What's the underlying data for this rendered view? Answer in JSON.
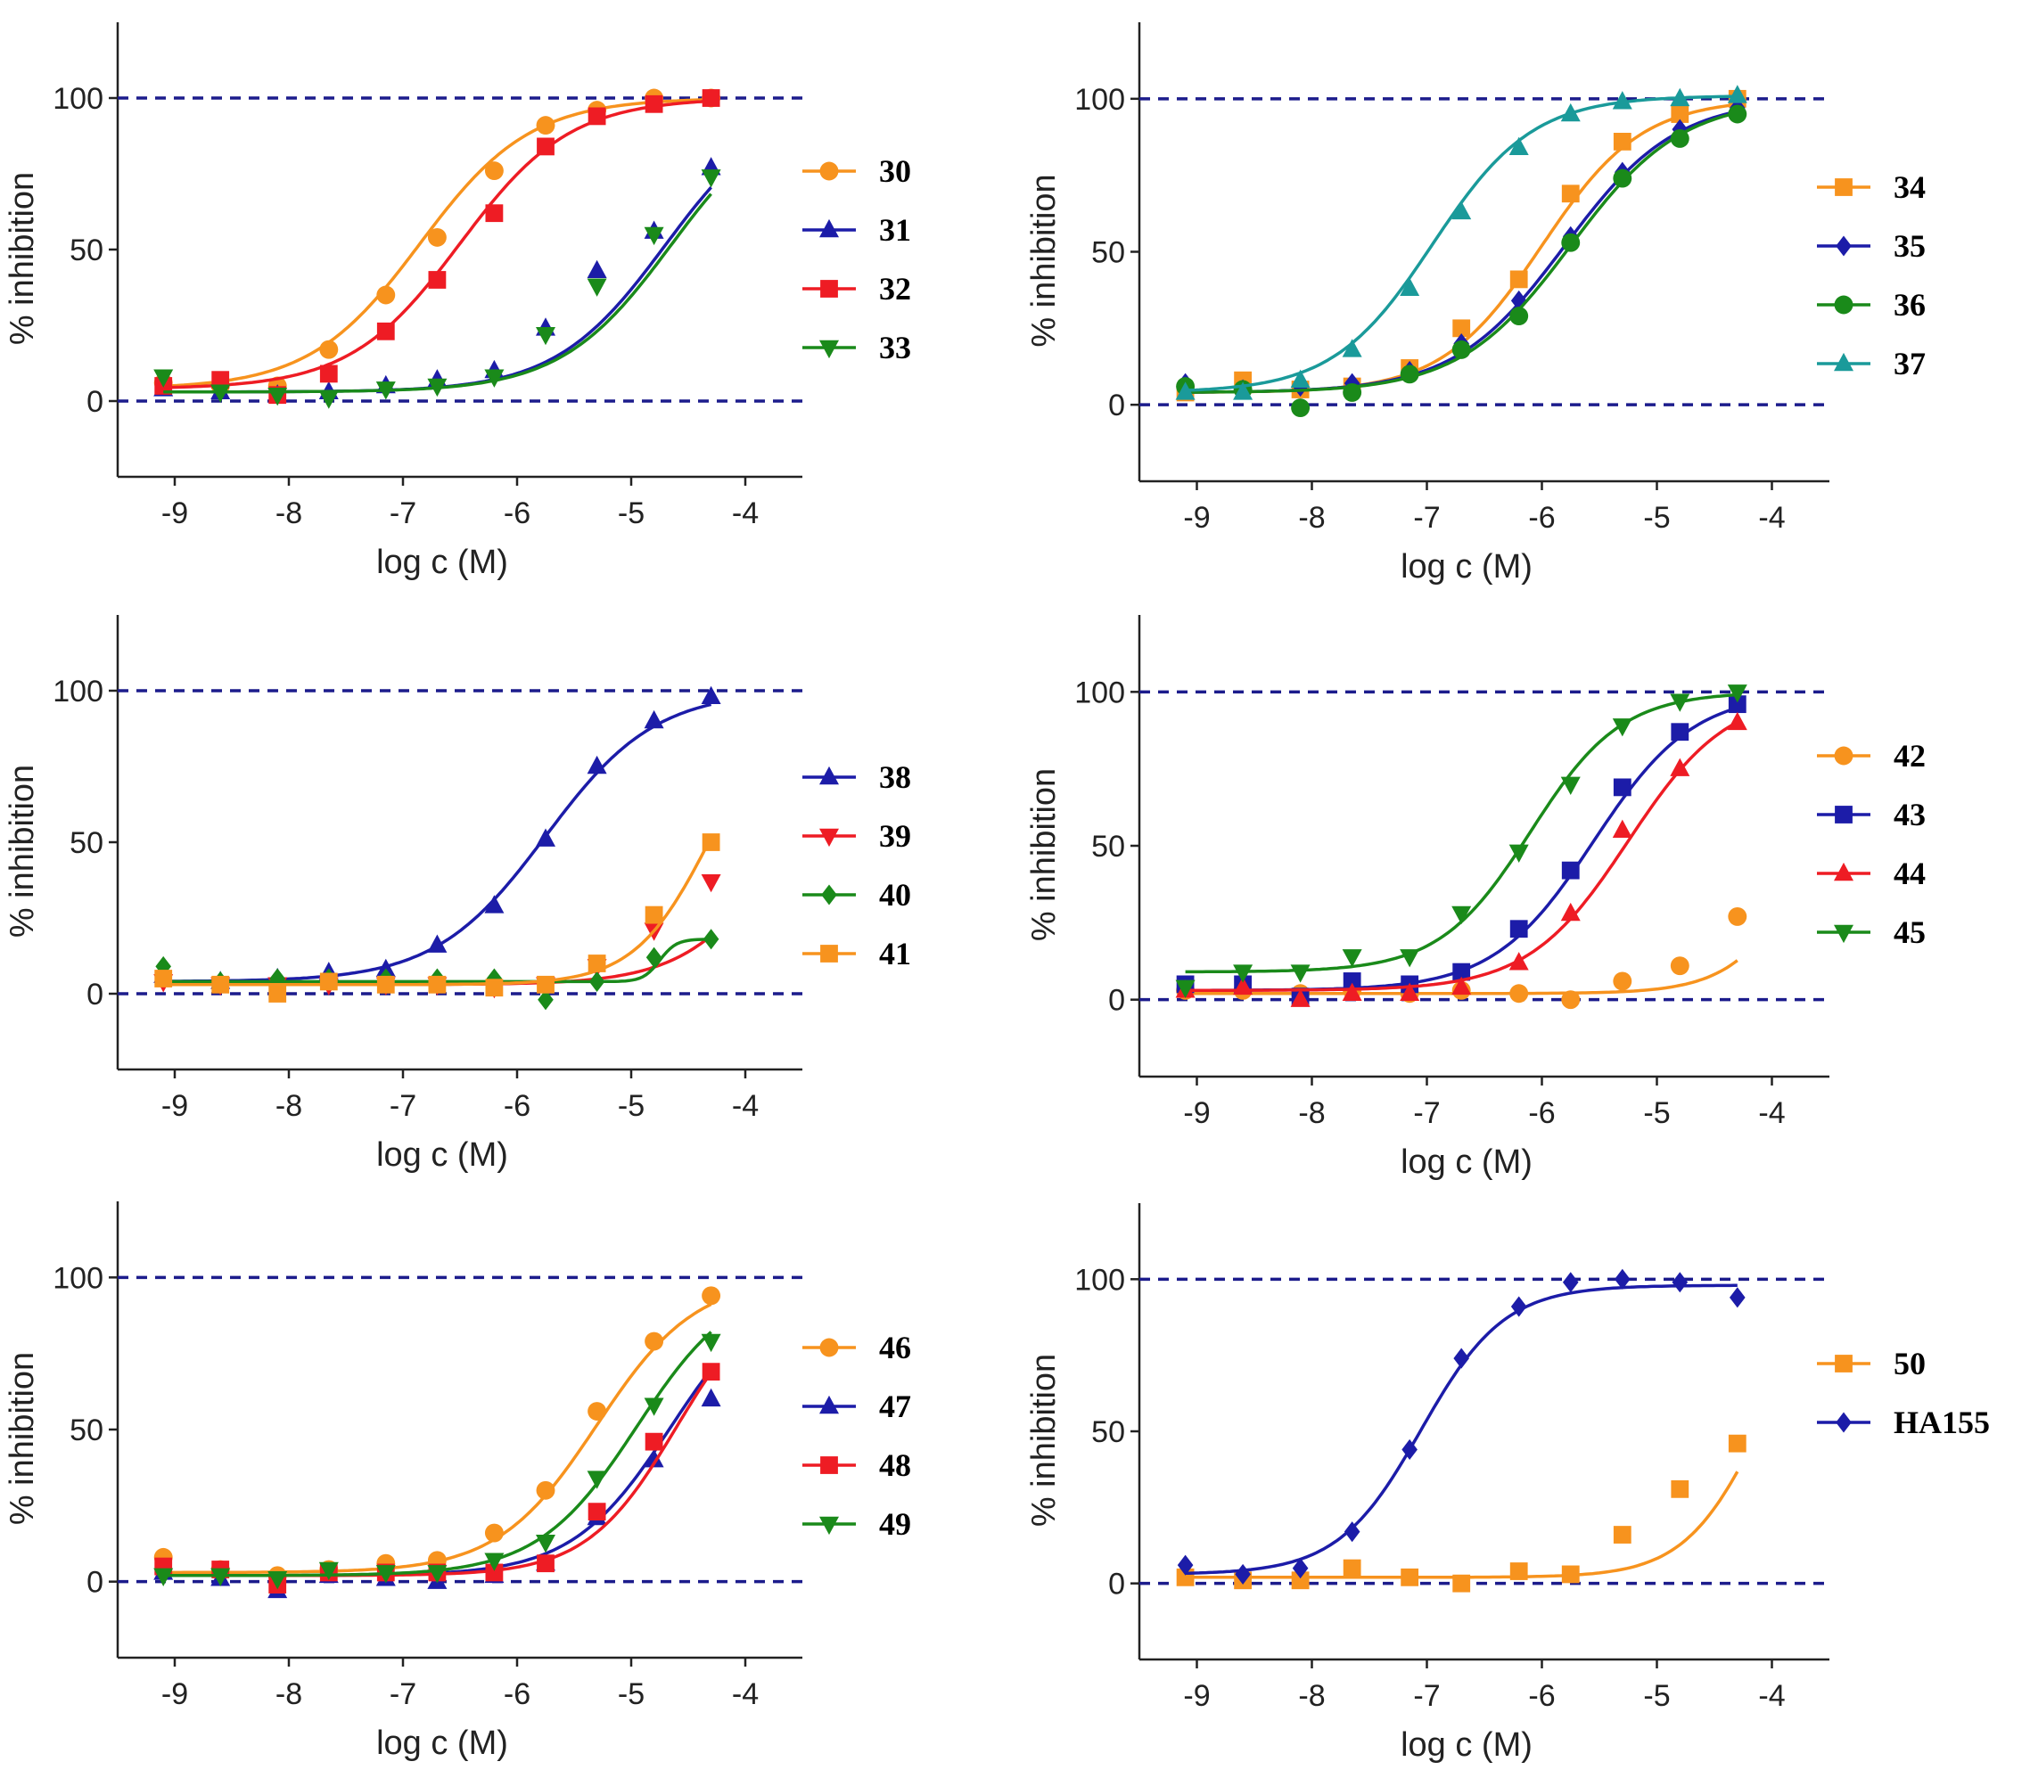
{
  "figure": {
    "description": ""
  },
  "colors": {
    "orange": "#f7931e",
    "blue": "#1c1ca8",
    "red": "#ee1c24",
    "green": "#1a8a1a",
    "teal": "#1a9a9a",
    "refline": "#1c1c8c"
  },
  "chart_data": [
    {
      "type": "line",
      "panel": "top-left",
      "xlabel": "log c (M)",
      "ylabel": "% inhibition",
      "xlim": [
        -9.5,
        -3.5
      ],
      "ylim": [
        -25,
        125
      ],
      "xticks": [
        -9,
        -8,
        -7,
        -6,
        -5,
        -4
      ],
      "xtick_labels": [
        "-9",
        "-8",
        "-7",
        "-6",
        "-5",
        "-4"
      ],
      "yticks": [
        0,
        50,
        100
      ],
      "ytick_labels": [
        "0",
        "50",
        "100"
      ],
      "reference_lines": [
        0,
        100
      ],
      "legend_position": "right",
      "series": [
        {
          "name": "30",
          "color": "orange",
          "marker": "circle",
          "x": [
            -9.1,
            -8.6,
            -8.1,
            -7.65,
            -7.15,
            -6.7,
            -6.2,
            -5.75,
            -5.3,
            -4.8,
            -4.3
          ],
          "y": [
            6,
            5,
            5,
            17,
            35,
            54,
            76,
            91,
            96,
            100,
            100
          ],
          "fit": {
            "bottom": 4,
            "top": 100,
            "logEC50": -6.85,
            "hill": 0.9
          }
        },
        {
          "name": "31",
          "color": "blue",
          "marker": "triangle-up",
          "x": [
            -9.1,
            -8.6,
            -8.1,
            -7.65,
            -7.15,
            -6.7,
            -6.2,
            -5.75,
            -5.3,
            -4.8,
            -4.3
          ],
          "y": [
            4,
            3,
            2,
            3,
            5,
            7,
            10,
            24,
            43,
            56,
            77
          ],
          "fit": {
            "bottom": 3,
            "top": 100,
            "logEC50": -4.7,
            "hill": 0.9
          }
        },
        {
          "name": "32",
          "color": "red",
          "marker": "square",
          "x": [
            -9.1,
            -8.6,
            -8.1,
            -7.65,
            -7.15,
            -6.7,
            -6.2,
            -5.75,
            -5.3,
            -4.8,
            -4.3
          ],
          "y": [
            5,
            7,
            2,
            9,
            23,
            40,
            62,
            84,
            94,
            98,
            100
          ],
          "fit": {
            "bottom": 4,
            "top": 100,
            "logEC50": -6.5,
            "hill": 0.9
          }
        },
        {
          "name": "33",
          "color": "green",
          "marker": "triangle-down",
          "x": [
            -9.1,
            -8.6,
            -8.1,
            -7.65,
            -7.15,
            -6.7,
            -6.2,
            -5.75,
            -5.3,
            -4.8,
            -4.3
          ],
          "y": [
            8,
            3,
            2,
            1,
            4,
            5,
            8,
            22,
            38,
            55,
            74
          ],
          "fit": {
            "bottom": 3,
            "top": 100,
            "logEC50": -4.65,
            "hill": 0.9
          }
        }
      ]
    },
    {
      "type": "line",
      "panel": "top-right",
      "xlabel": "log c (M)",
      "ylabel": "% inhibition",
      "xlim": [
        -9.5,
        -3.5
      ],
      "ylim": [
        -25,
        125
      ],
      "xticks": [
        -9,
        -8,
        -7,
        -6,
        -5,
        -4
      ],
      "xtick_labels": [
        "-9",
        "-8",
        "-7",
        "-6",
        "-5",
        "-4"
      ],
      "yticks": [
        0,
        50,
        100
      ],
      "ytick_labels": [
        "0",
        "50",
        "100"
      ],
      "reference_lines": [
        0,
        100
      ],
      "legend_position": "right",
      "series": [
        {
          "name": "34",
          "color": "orange",
          "marker": "square",
          "x": [
            -9.1,
            -8.6,
            -8.1,
            -7.65,
            -7.15,
            -6.7,
            -6.2,
            -5.75,
            -5.3,
            -4.8,
            -4.3
          ],
          "y": [
            4,
            8,
            5,
            6,
            12,
            25,
            41,
            69,
            86,
            95,
            100
          ],
          "fit": {
            "bottom": 4,
            "top": 100,
            "logEC50": -6.0,
            "hill": 1.0
          }
        },
        {
          "name": "35",
          "color": "blue",
          "marker": "diamond",
          "x": [
            -9.1,
            -8.6,
            -8.1,
            -7.65,
            -7.15,
            -6.7,
            -6.2,
            -5.75,
            -5.3,
            -4.8,
            -4.3
          ],
          "y": [
            7,
            5,
            6,
            7,
            11,
            20,
            34,
            55,
            76,
            90,
            97
          ],
          "fit": {
            "bottom": 4,
            "top": 100,
            "logEC50": -5.8,
            "hill": 0.9
          }
        },
        {
          "name": "36",
          "color": "green",
          "marker": "circle",
          "x": [
            -9.1,
            -8.6,
            -8.1,
            -7.65,
            -7.15,
            -6.7,
            -6.2,
            -5.75,
            -5.3,
            -4.8,
            -4.3
          ],
          "y": [
            6,
            5,
            -1,
            4,
            10,
            18,
            29,
            53,
            74,
            87,
            95
          ],
          "fit": {
            "bottom": 4,
            "top": 100,
            "logEC50": -5.75,
            "hill": 0.9
          }
        },
        {
          "name": "37",
          "color": "teal",
          "marker": "triangle-up",
          "x": [
            -9.1,
            -8.6,
            -8.1,
            -7.65,
            -7.15,
            -6.7,
            -6.2,
            -5.75,
            -5.3,
            -4.8,
            -4.3
          ],
          "y": [
            4,
            4,
            8,
            18,
            38,
            63,
            84,
            95,
            99,
            100,
            101
          ],
          "fit": {
            "bottom": 4,
            "top": 101,
            "logEC50": -6.95,
            "hill": 1.0
          }
        }
      ]
    },
    {
      "type": "line",
      "panel": "middle-left",
      "xlabel": "log c (M)",
      "ylabel": "% inhibition",
      "xlim": [
        -9.5,
        -3.5
      ],
      "ylim": [
        -25,
        125
      ],
      "xticks": [
        -9,
        -8,
        -7,
        -6,
        -5,
        -4
      ],
      "xtick_labels": [
        "-9",
        "-8",
        "-7",
        "-6",
        "-5",
        "-4"
      ],
      "yticks": [
        0,
        50,
        100
      ],
      "ytick_labels": [
        "0",
        "50",
        "100"
      ],
      "reference_lines": [
        0,
        100
      ],
      "legend_position": "right",
      "series": [
        {
          "name": "38",
          "color": "blue",
          "marker": "triangle-up",
          "x": [
            -9.1,
            -8.6,
            -8.1,
            -7.65,
            -7.15,
            -6.7,
            -6.2,
            -5.75,
            -5.3,
            -4.8,
            -4.3
          ],
          "y": [
            6,
            4,
            5,
            7,
            8,
            16,
            29,
            51,
            75,
            90,
            98
          ],
          "fit": {
            "bottom": 4,
            "top": 100,
            "logEC50": -5.75,
            "hill": 0.9
          }
        },
        {
          "name": "39",
          "color": "red",
          "marker": "triangle-down",
          "x": [
            -9.1,
            -8.6,
            -8.1,
            -7.65,
            -7.15,
            -6.7,
            -6.2,
            -5.75,
            -5.3,
            -4.8,
            -4.3
          ],
          "y": [
            4,
            3,
            3,
            3,
            3,
            3,
            2,
            3,
            9,
            21,
            37
          ],
          "fit": {
            "bottom": 3,
            "top": 100,
            "logEC50": -3.6,
            "hill": 1.0
          }
        },
        {
          "name": "40",
          "color": "green",
          "marker": "diamond",
          "x": [
            -9.1,
            -8.6,
            -8.1,
            -7.65,
            -7.15,
            -6.7,
            -6.2,
            -5.75,
            -5.3,
            -4.8,
            -4.3
          ],
          "y": [
            9,
            4,
            5,
            5,
            5,
            5,
            5,
            -2,
            4,
            12,
            18
          ],
          "fit": {
            "bottom": 4,
            "top": 18,
            "logEC50": -4.75,
            "hill": 6
          }
        },
        {
          "name": "41",
          "color": "orange",
          "marker": "square",
          "x": [
            -9.1,
            -8.6,
            -8.1,
            -7.65,
            -7.15,
            -6.7,
            -6.2,
            -5.75,
            -5.3,
            -4.8,
            -4.3
          ],
          "y": [
            5,
            3,
            0,
            4,
            3,
            3,
            2,
            3,
            10,
            26,
            50
          ],
          "fit": {
            "bottom": 3,
            "top": 100,
            "logEC50": -4.3,
            "hill": 1.3
          }
        }
      ]
    },
    {
      "type": "line",
      "panel": "middle-right",
      "xlabel": "log c (M)",
      "ylabel": "% inhibition",
      "xlim": [
        -9.5,
        -3.5
      ],
      "ylim": [
        -25,
        125
      ],
      "xticks": [
        -9,
        -8,
        -7,
        -6,
        -5,
        -4
      ],
      "xtick_labels": [
        "-9",
        "-8",
        "-7",
        "-6",
        "-5",
        "-4"
      ],
      "yticks": [
        0,
        50,
        100
      ],
      "ytick_labels": [
        "0",
        "50",
        "100"
      ],
      "reference_lines": [
        0,
        100
      ],
      "legend_position": "right",
      "series": [
        {
          "name": "42",
          "color": "orange",
          "marker": "circle",
          "x": [
            -9.1,
            -8.6,
            -8.1,
            -7.65,
            -7.15,
            -6.7,
            -6.2,
            -5.75,
            -5.3,
            -4.8,
            -4.3
          ],
          "y": [
            3,
            3,
            2,
            3,
            2,
            3,
            2,
            0,
            6,
            11,
            27
          ],
          "fit": {
            "bottom": 2,
            "top": 100,
            "logEC50": -3.6,
            "hill": 1.3
          }
        },
        {
          "name": "43",
          "color": "blue",
          "marker": "square",
          "x": [
            -9.1,
            -8.6,
            -8.1,
            -7.65,
            -7.15,
            -6.7,
            -6.2,
            -5.75,
            -5.3,
            -4.8,
            -4.3
          ],
          "y": [
            5,
            5,
            1,
            6,
            5,
            9,
            23,
            42,
            69,
            87,
            96
          ],
          "fit": {
            "bottom": 3,
            "top": 100,
            "logEC50": -5.55,
            "hill": 1.0
          }
        },
        {
          "name": "44",
          "color": "red",
          "marker": "triangle-up",
          "x": [
            -9.1,
            -8.6,
            -8.1,
            -7.65,
            -7.15,
            -6.7,
            -6.2,
            -5.75,
            -5.3,
            -4.8,
            -4.3
          ],
          "y": [
            3,
            4,
            0,
            2,
            2,
            4,
            12,
            28,
            55,
            75,
            90
          ],
          "fit": {
            "bottom": 3,
            "top": 100,
            "logEC50": -5.25,
            "hill": 1.0
          }
        },
        {
          "name": "45",
          "color": "green",
          "marker": "triangle-down",
          "x": [
            -9.1,
            -8.6,
            -8.1,
            -7.65,
            -7.15,
            -6.7,
            -6.2,
            -5.75,
            -5.3,
            -4.8,
            -4.3
          ],
          "y": [
            4,
            9,
            9,
            14,
            14,
            28,
            48,
            70,
            89,
            97,
            100
          ],
          "fit": {
            "bottom": 9,
            "top": 100,
            "logEC50": -6.1,
            "hill": 1.1
          }
        }
      ]
    },
    {
      "type": "line",
      "panel": "bottom-left",
      "xlabel": "log c (M)",
      "ylabel": "% inhibition",
      "xlim": [
        -9.5,
        -3.5
      ],
      "ylim": [
        -25,
        125
      ],
      "xticks": [
        -9,
        -8,
        -7,
        -6,
        -5,
        -4
      ],
      "xtick_labels": [
        "-9",
        "-8",
        "-7",
        "-6",
        "-5",
        "-4"
      ],
      "yticks": [
        0,
        50,
        100
      ],
      "ytick_labels": [
        "0",
        "50",
        "100"
      ],
      "reference_lines": [
        0,
        100
      ],
      "legend_position": "right",
      "series": [
        {
          "name": "46",
          "color": "orange",
          "marker": "circle",
          "x": [
            -9.1,
            -8.6,
            -8.1,
            -7.65,
            -7.15,
            -6.7,
            -6.2,
            -5.75,
            -5.3,
            -4.8,
            -4.3
          ],
          "y": [
            8,
            4,
            2,
            4,
            6,
            7,
            16,
            30,
            56,
            79,
            94
          ],
          "fit": {
            "bottom": 3,
            "top": 100,
            "logEC50": -5.3,
            "hill": 1.0
          }
        },
        {
          "name": "47",
          "color": "blue",
          "marker": "triangle-up",
          "x": [
            -9.1,
            -8.6,
            -8.1,
            -7.65,
            -7.15,
            -6.7,
            -6.2,
            -5.75,
            -5.3,
            -4.8,
            -4.3
          ],
          "y": [
            3,
            1,
            -3,
            2,
            1,
            0,
            2,
            6,
            21,
            40,
            60
          ],
          "fit": {
            "bottom": 2,
            "top": 100,
            "logEC50": -4.65,
            "hill": 1.0
          }
        },
        {
          "name": "48",
          "color": "red",
          "marker": "square",
          "x": [
            -9.1,
            -8.6,
            -8.1,
            -7.65,
            -7.15,
            -6.7,
            -6.2,
            -5.75,
            -5.3,
            -4.8,
            -4.3
          ],
          "y": [
            5,
            4,
            -1,
            3,
            3,
            3,
            3,
            6,
            23,
            46,
            69
          ],
          "fit": {
            "bottom": 2,
            "top": 100,
            "logEC50": -4.6,
            "hill": 1.1
          }
        },
        {
          "name": "49",
          "color": "green",
          "marker": "triangle-down",
          "x": [
            -9.1,
            -8.6,
            -8.1,
            -7.65,
            -7.15,
            -6.7,
            -6.2,
            -5.75,
            -5.3,
            -4.8,
            -4.3
          ],
          "y": [
            2,
            2,
            1,
            4,
            3,
            3,
            7,
            13,
            34,
            58,
            79
          ],
          "fit": {
            "bottom": 2,
            "top": 100,
            "logEC50": -4.95,
            "hill": 1.0
          }
        }
      ]
    },
    {
      "type": "line",
      "panel": "bottom-right",
      "xlabel": "log c (M)",
      "ylabel": "% inhibition",
      "xlim": [
        -9.5,
        -3.5
      ],
      "ylim": [
        -25,
        125
      ],
      "xticks": [
        -9,
        -8,
        -7,
        -6,
        -5,
        -4
      ],
      "xtick_labels": [
        "-9",
        "-8",
        "-7",
        "-6",
        "-5",
        "-4"
      ],
      "yticks": [
        0,
        50,
        100
      ],
      "ytick_labels": [
        "0",
        "50",
        "100"
      ],
      "reference_lines": [
        0,
        100
      ],
      "legend_position": "right",
      "series": [
        {
          "name": "50",
          "color": "orange",
          "marker": "square",
          "x": [
            -9.1,
            -8.6,
            -8.1,
            -7.65,
            -7.15,
            -6.7,
            -6.2,
            -5.75,
            -5.3,
            -4.8,
            -4.3
          ],
          "y": [
            2,
            1,
            1,
            5,
            2,
            0,
            4,
            3,
            16,
            31,
            46
          ],
          "fit": {
            "bottom": 2,
            "top": 100,
            "logEC50": -4.1,
            "hill": 1.3
          }
        },
        {
          "name": "HA155",
          "color": "blue",
          "marker": "diamond",
          "x": [
            -9.1,
            -8.6,
            -8.1,
            -7.65,
            -7.15,
            -6.7,
            -6.2,
            -5.75,
            -5.3,
            -4.8,
            -4.3
          ],
          "y": [
            6,
            3,
            5,
            17,
            44,
            74,
            91,
            99,
            100,
            99,
            94
          ],
          "fit": {
            "bottom": 3,
            "top": 98,
            "logEC50": -7.05,
            "hill": 1.2
          }
        }
      ]
    }
  ]
}
